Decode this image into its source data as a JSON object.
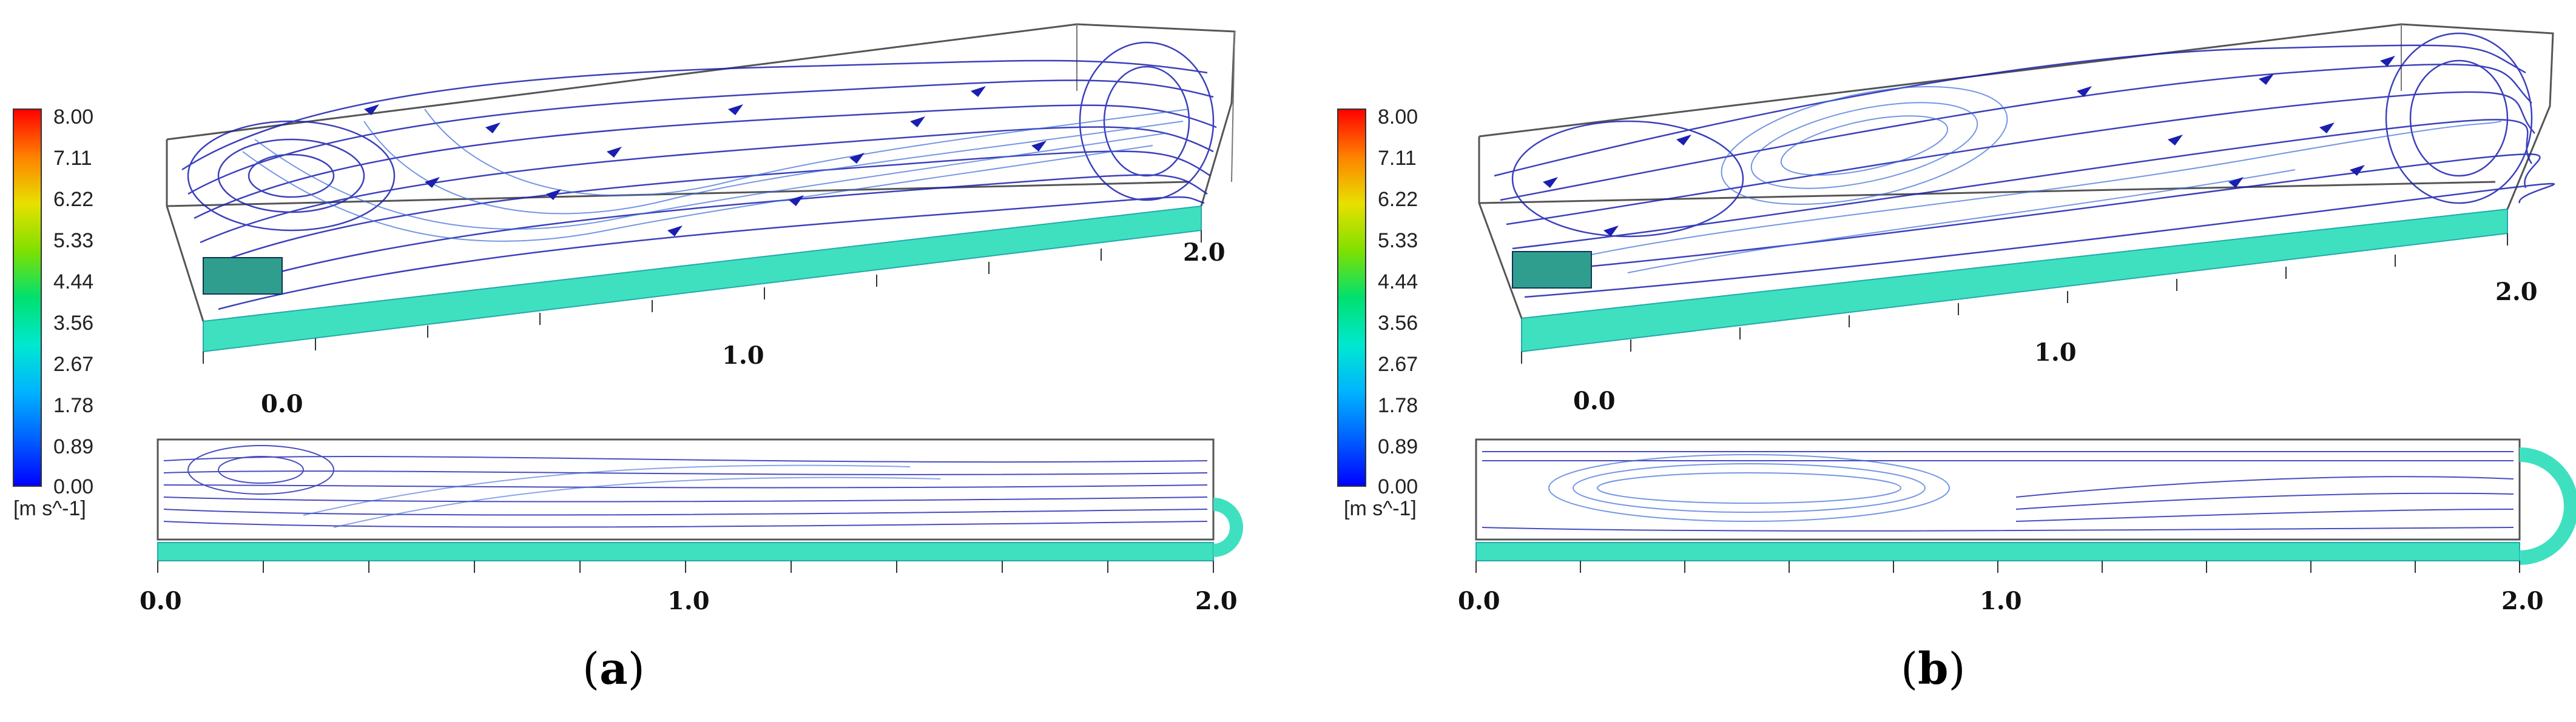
{
  "panels": [
    {
      "caption_open": "(",
      "caption_letter": "a",
      "caption_close": ")",
      "colorbar": {
        "ticks": [
          "8.00",
          "7.11",
          "6.22",
          "5.33",
          "4.44",
          "3.56",
          "2.67",
          "1.78",
          "0.89",
          "0.00"
        ],
        "unit": "[m s^-1]"
      },
      "view3d_labels": [
        "0.0",
        "1.0",
        "2.0"
      ],
      "top_view_labels": [
        "0.0",
        "1.0",
        "2.0"
      ],
      "vortex": "left-swirl"
    },
    {
      "caption_open": "(",
      "caption_letter": "b",
      "caption_close": ")",
      "colorbar": {
        "ticks": [
          "8.00",
          "7.11",
          "6.22",
          "5.33",
          "4.44",
          "3.56",
          "2.67",
          "1.78",
          "0.89",
          "0.00"
        ],
        "unit": "[m s^-1]"
      },
      "view3d_labels": [
        "0.0",
        "1.0",
        "2.0"
      ],
      "top_view_labels": [
        "0.0",
        "1.0",
        "2.0"
      ],
      "vortex": "central-eddy"
    }
  ],
  "colors": {
    "streamline_dark": "#1a1fb0",
    "streamline_light": "#3a6bd8",
    "channel_fill": "#3fe0c0",
    "inlet_block": "#2f9e8e",
    "frame": "#444444"
  }
}
